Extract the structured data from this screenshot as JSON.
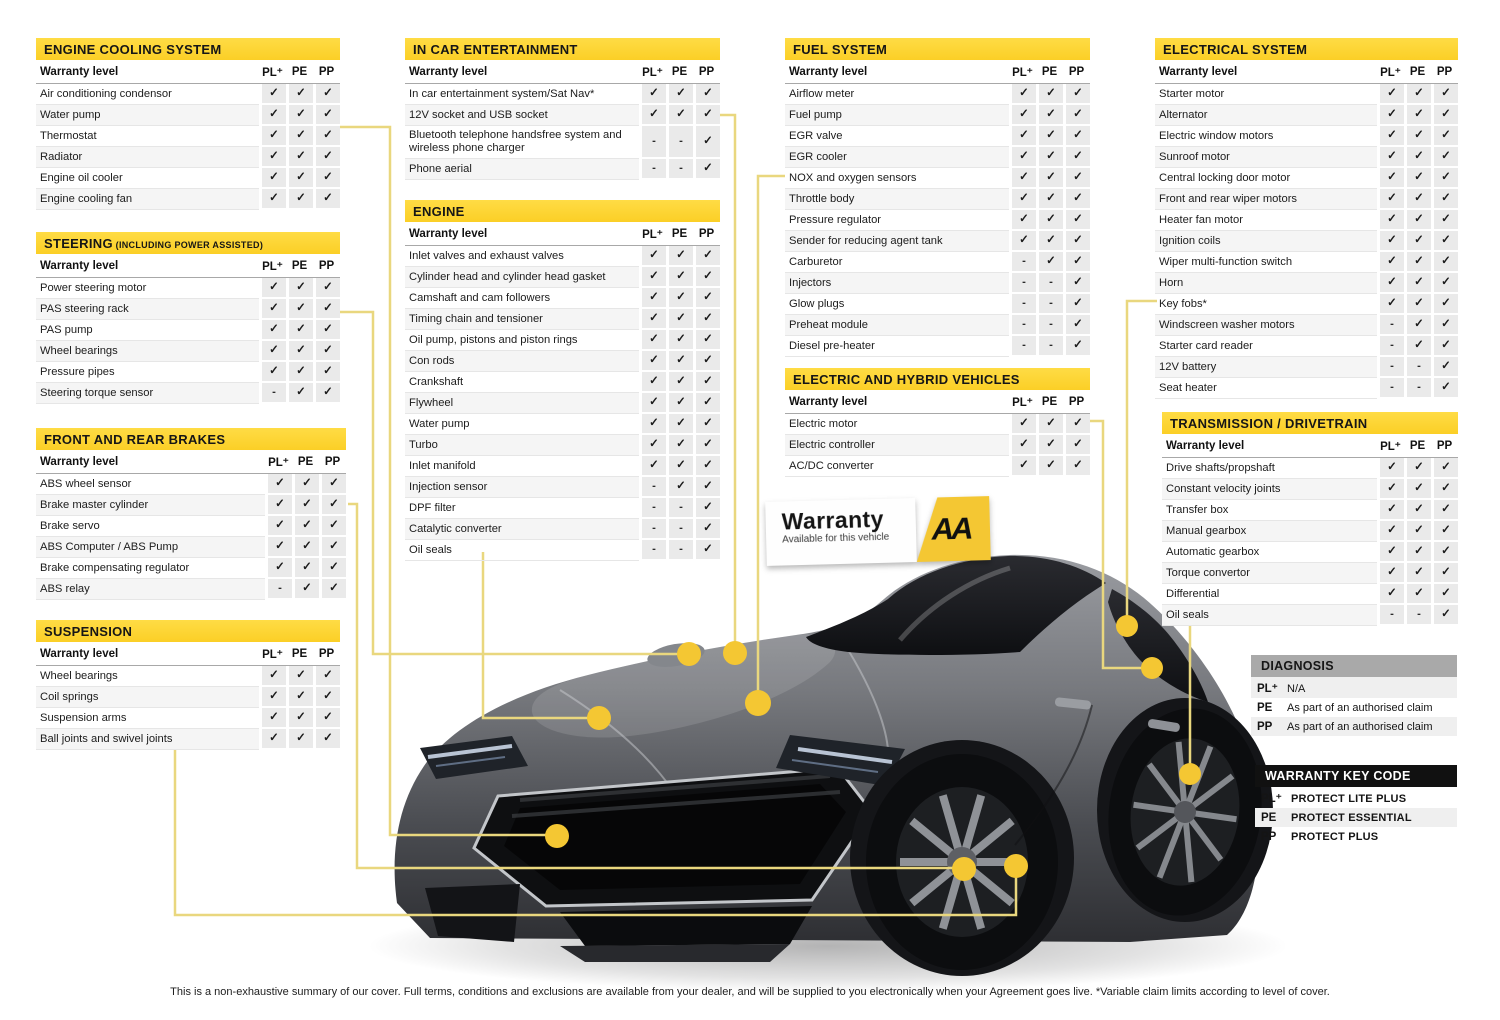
{
  "colors": {
    "header-yellow": "#FBCF26",
    "dot-yellow": "#F4C733",
    "line-yellow": "#E9D77E",
    "key-black": "#111111",
    "diagnosis-gray": "#A9A9A9"
  },
  "labels": {
    "warranty_level": "Warranty level",
    "cols": [
      "PL⁺",
      "PE",
      "PP"
    ]
  },
  "tables": [
    {
      "id": "cooling",
      "title": "ENGINE COOLING SYSTEM",
      "rows": [
        {
          "label": "Air conditioning condensor",
          "marks": [
            "✓",
            "✓",
            "✓"
          ]
        },
        {
          "label": "Water pump",
          "marks": [
            "✓",
            "✓",
            "✓"
          ]
        },
        {
          "label": "Thermostat",
          "marks": [
            "✓",
            "✓",
            "✓"
          ]
        },
        {
          "label": "Radiator",
          "marks": [
            "✓",
            "✓",
            "✓"
          ]
        },
        {
          "label": "Engine oil cooler",
          "marks": [
            "✓",
            "✓",
            "✓"
          ]
        },
        {
          "label": "Engine cooling fan",
          "marks": [
            "✓",
            "✓",
            "✓"
          ]
        }
      ]
    },
    {
      "id": "steering",
      "title": "STEERING",
      "suffix": "(INCLUDING POWER ASSISTED)",
      "rows": [
        {
          "label": "Power steering motor",
          "marks": [
            "✓",
            "✓",
            "✓"
          ]
        },
        {
          "label": "PAS steering rack",
          "marks": [
            "✓",
            "✓",
            "✓"
          ]
        },
        {
          "label": "PAS pump",
          "marks": [
            "✓",
            "✓",
            "✓"
          ]
        },
        {
          "label": "Wheel bearings",
          "marks": [
            "✓",
            "✓",
            "✓"
          ]
        },
        {
          "label": "Pressure pipes",
          "marks": [
            "✓",
            "✓",
            "✓"
          ]
        },
        {
          "label": "Steering torque sensor",
          "marks": [
            "-",
            "✓",
            "✓"
          ]
        }
      ]
    },
    {
      "id": "brakes",
      "title": "FRONT AND REAR BRAKES",
      "rows": [
        {
          "label": "ABS wheel sensor",
          "marks": [
            "✓",
            "✓",
            "✓"
          ]
        },
        {
          "label": "Brake master cylinder",
          "marks": [
            "✓",
            "✓",
            "✓"
          ]
        },
        {
          "label": "Brake servo",
          "marks": [
            "✓",
            "✓",
            "✓"
          ]
        },
        {
          "label": "ABS Computer / ABS Pump",
          "marks": [
            "✓",
            "✓",
            "✓"
          ]
        },
        {
          "label": "Brake compensating regulator",
          "marks": [
            "✓",
            "✓",
            "✓"
          ]
        },
        {
          "label": "ABS relay",
          "marks": [
            "-",
            "✓",
            "✓"
          ]
        }
      ]
    },
    {
      "id": "suspension",
      "title": "SUSPENSION",
      "rows": [
        {
          "label": "Wheel bearings",
          "marks": [
            "✓",
            "✓",
            "✓"
          ]
        },
        {
          "label": "Coil springs",
          "marks": [
            "✓",
            "✓",
            "✓"
          ]
        },
        {
          "label": "Suspension arms",
          "marks": [
            "✓",
            "✓",
            "✓"
          ]
        },
        {
          "label": "Ball joints and swivel joints",
          "marks": [
            "✓",
            "✓",
            "✓"
          ]
        }
      ]
    },
    {
      "id": "ice",
      "title": "IN CAR ENTERTAINMENT",
      "rows": [
        {
          "label": "In car entertainment system/Sat Nav*",
          "marks": [
            "✓",
            "✓",
            "✓"
          ]
        },
        {
          "label": "12V socket and USB socket",
          "marks": [
            "✓",
            "✓",
            "✓"
          ]
        },
        {
          "label": "Bluetooth telephone handsfree system and wireless phone charger",
          "marks": [
            "-",
            "-",
            "✓"
          ]
        },
        {
          "label": "Phone aerial",
          "marks": [
            "-",
            "-",
            "✓"
          ]
        }
      ]
    },
    {
      "id": "engine",
      "title": "ENGINE",
      "rows": [
        {
          "label": "Inlet valves and exhaust valves",
          "marks": [
            "✓",
            "✓",
            "✓"
          ]
        },
        {
          "label": "Cylinder head and cylinder head gasket",
          "marks": [
            "✓",
            "✓",
            "✓"
          ]
        },
        {
          "label": "Camshaft and cam followers",
          "marks": [
            "✓",
            "✓",
            "✓"
          ]
        },
        {
          "label": "Timing chain and tensioner",
          "marks": [
            "✓",
            "✓",
            "✓"
          ]
        },
        {
          "label": "Oil pump, pistons and piston rings",
          "marks": [
            "✓",
            "✓",
            "✓"
          ]
        },
        {
          "label": "Con rods",
          "marks": [
            "✓",
            "✓",
            "✓"
          ]
        },
        {
          "label": "Crankshaft",
          "marks": [
            "✓",
            "✓",
            "✓"
          ]
        },
        {
          "label": "Flywheel",
          "marks": [
            "✓",
            "✓",
            "✓"
          ]
        },
        {
          "label": "Water pump",
          "marks": [
            "✓",
            "✓",
            "✓"
          ]
        },
        {
          "label": "Turbo",
          "marks": [
            "✓",
            "✓",
            "✓"
          ]
        },
        {
          "label": "Inlet manifold",
          "marks": [
            "✓",
            "✓",
            "✓"
          ]
        },
        {
          "label": "Injection sensor",
          "marks": [
            "-",
            "✓",
            "✓"
          ]
        },
        {
          "label": "DPF filter",
          "marks": [
            "-",
            "-",
            "✓"
          ]
        },
        {
          "label": "Catalytic converter",
          "marks": [
            "-",
            "-",
            "✓"
          ]
        },
        {
          "label": "Oil seals",
          "marks": [
            "-",
            "-",
            "✓"
          ]
        }
      ]
    },
    {
      "id": "fuel",
      "title": "FUEL SYSTEM",
      "rows": [
        {
          "label": "Airflow meter",
          "marks": [
            "✓",
            "✓",
            "✓"
          ]
        },
        {
          "label": "Fuel pump",
          "marks": [
            "✓",
            "✓",
            "✓"
          ]
        },
        {
          "label": "EGR valve",
          "marks": [
            "✓",
            "✓",
            "✓"
          ]
        },
        {
          "label": "EGR cooler",
          "marks": [
            "✓",
            "✓",
            "✓"
          ]
        },
        {
          "label": "NOX and oxygen sensors",
          "marks": [
            "✓",
            "✓",
            "✓"
          ]
        },
        {
          "label": "Throttle body",
          "marks": [
            "✓",
            "✓",
            "✓"
          ]
        },
        {
          "label": "Pressure regulator",
          "marks": [
            "✓",
            "✓",
            "✓"
          ]
        },
        {
          "label": "Sender for reducing agent tank",
          "marks": [
            "✓",
            "✓",
            "✓"
          ]
        },
        {
          "label": "Carburetor",
          "marks": [
            "-",
            "✓",
            "✓"
          ]
        },
        {
          "label": "Injectors",
          "marks": [
            "-",
            "-",
            "✓"
          ]
        },
        {
          "label": "Glow plugs",
          "marks": [
            "-",
            "-",
            "✓"
          ]
        },
        {
          "label": "Preheat module",
          "marks": [
            "-",
            "-",
            "✓"
          ]
        },
        {
          "label": "Diesel pre-heater",
          "marks": [
            "-",
            "-",
            "✓"
          ]
        }
      ]
    },
    {
      "id": "ev",
      "title": "ELECTRIC AND HYBRID VEHICLES",
      "rows": [
        {
          "label": "Electric motor",
          "marks": [
            "✓",
            "✓",
            "✓"
          ]
        },
        {
          "label": "Electric controller",
          "marks": [
            "✓",
            "✓",
            "✓"
          ]
        },
        {
          "label": "AC/DC converter",
          "marks": [
            "✓",
            "✓",
            "✓"
          ]
        }
      ]
    },
    {
      "id": "electrical",
      "title": "ELECTRICAL SYSTEM",
      "rows": [
        {
          "label": "Starter motor",
          "marks": [
            "✓",
            "✓",
            "✓"
          ]
        },
        {
          "label": "Alternator",
          "marks": [
            "✓",
            "✓",
            "✓"
          ]
        },
        {
          "label": "Electric window motors",
          "marks": [
            "✓",
            "✓",
            "✓"
          ]
        },
        {
          "label": "Sunroof motor",
          "marks": [
            "✓",
            "✓",
            "✓"
          ]
        },
        {
          "label": "Central locking door motor",
          "marks": [
            "✓",
            "✓",
            "✓"
          ]
        },
        {
          "label": "Front and rear wiper motors",
          "marks": [
            "✓",
            "✓",
            "✓"
          ]
        },
        {
          "label": "Heater fan motor",
          "marks": [
            "✓",
            "✓",
            "✓"
          ]
        },
        {
          "label": "Ignition coils",
          "marks": [
            "✓",
            "✓",
            "✓"
          ]
        },
        {
          "label": "Wiper multi-function switch",
          "marks": [
            "✓",
            "✓",
            "✓"
          ]
        },
        {
          "label": "Horn",
          "marks": [
            "✓",
            "✓",
            "✓"
          ]
        },
        {
          "label": "Key fobs*",
          "marks": [
            "✓",
            "✓",
            "✓"
          ]
        },
        {
          "label": "Windscreen washer motors",
          "marks": [
            "-",
            "✓",
            "✓"
          ]
        },
        {
          "label": "Starter card reader",
          "marks": [
            "-",
            "✓",
            "✓"
          ]
        },
        {
          "label": "12V battery",
          "marks": [
            "-",
            "-",
            "✓"
          ]
        },
        {
          "label": "Seat heater",
          "marks": [
            "-",
            "-",
            "✓"
          ]
        }
      ]
    },
    {
      "id": "transmission",
      "title": "TRANSMISSION / DRIVETRAIN",
      "rows": [
        {
          "label": "Drive shafts/propshaft",
          "marks": [
            "✓",
            "✓",
            "✓"
          ]
        },
        {
          "label": "Constant velocity joints",
          "marks": [
            "✓",
            "✓",
            "✓"
          ]
        },
        {
          "label": "Transfer box",
          "marks": [
            "✓",
            "✓",
            "✓"
          ]
        },
        {
          "label": "Manual gearbox",
          "marks": [
            "✓",
            "✓",
            "✓"
          ]
        },
        {
          "label": "Automatic gearbox",
          "marks": [
            "✓",
            "✓",
            "✓"
          ]
        },
        {
          "label": "Torque convertor",
          "marks": [
            "✓",
            "✓",
            "✓"
          ]
        },
        {
          "label": "Differential",
          "marks": [
            "✓",
            "✓",
            "✓"
          ]
        },
        {
          "label": "Oil seals",
          "marks": [
            "-",
            "-",
            "✓"
          ]
        }
      ]
    }
  ],
  "diagnosis": {
    "title": "DIAGNOSIS",
    "rows": [
      {
        "code": "PL⁺",
        "text": "N/A"
      },
      {
        "code": "PE",
        "text": "As part of an authorised claim"
      },
      {
        "code": "PP",
        "text": "As part of an authorised claim"
      }
    ]
  },
  "key_code": {
    "title": "WARRANTY KEY CODE",
    "rows": [
      {
        "code": "PL⁺",
        "text": "PROTECT LITE PLUS"
      },
      {
        "code": "PE",
        "text": "PROTECT ESSENTIAL"
      },
      {
        "code": "PP",
        "text": "PROTECT PLUS"
      }
    ]
  },
  "sign": {
    "title": "Warranty",
    "subtitle": "Available for this vehicle",
    "logo": "AA"
  },
  "footer": {
    "note": "This is a non-exhaustive summary of our cover. Full terms, conditions and exclusions are available from your dealer, and will be supplied to you electronically when your Agreement goes live. *Variable claim  limits according to level of cover."
  }
}
